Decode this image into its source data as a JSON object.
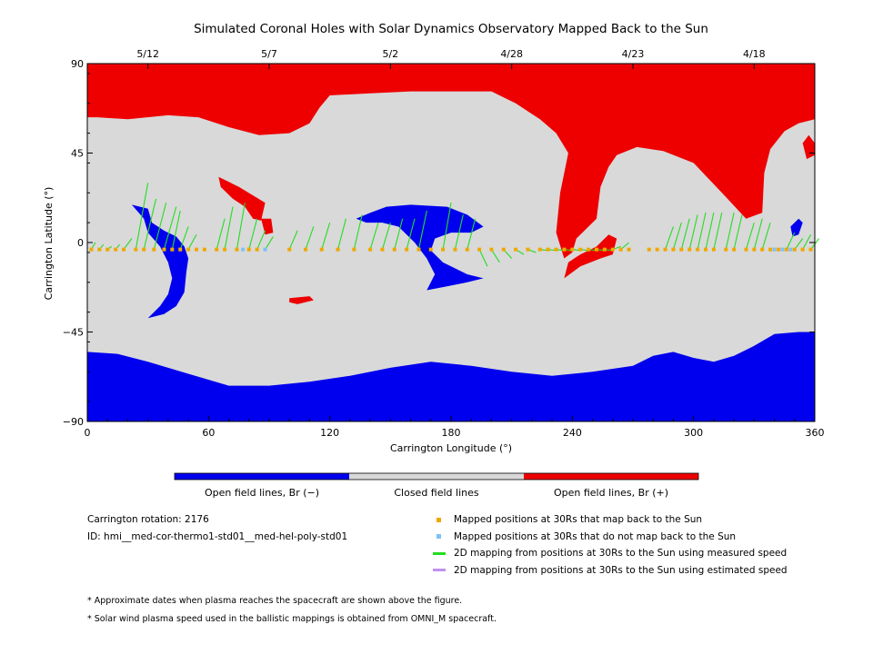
{
  "chart_data": {
    "type": "heatmap",
    "title": "Simulated Coronal Holes with Solar Dynamics Observatory Mapped Back to the Sun",
    "xlabel": "Carrington Longitude (°)",
    "ylabel": "Carrington Latitude (°)",
    "xlim": [
      0,
      360
    ],
    "ylim": [
      -90,
      90
    ],
    "x_ticks": [
      0,
      60,
      120,
      180,
      240,
      300,
      360
    ],
    "y_ticks": [
      90,
      45,
      0,
      -45,
      -90
    ],
    "x_tick_labels": [
      "0",
      "60",
      "120",
      "180",
      "240",
      "300",
      "360"
    ],
    "y_tick_labels": [
      "90",
      "45",
      "0",
      "−45",
      "−90"
    ],
    "top_dates": [
      {
        "lon": 30,
        "label": "5/12"
      },
      {
        "lon": 90,
        "label": "5/7"
      },
      {
        "lon": 150,
        "label": "5/2"
      },
      {
        "lon": 210,
        "label": "4/28"
      },
      {
        "lon": 270,
        "label": "4/23"
      },
      {
        "lon": 330,
        "label": "4/18"
      }
    ],
    "colors": {
      "open_negative": "#0000ee",
      "closed": "#d9d9d9",
      "open_positive": "#ee0000",
      "mapped_ok": "#f0a800",
      "mapped_fail": "#80c0f8",
      "measured_line": "#22dd22",
      "estimated_line": "#c090f0"
    },
    "regions": [
      {
        "name": "north-positive-polar-cap",
        "polarity": "positive",
        "polygon": [
          [
            0,
            90
          ],
          [
            360,
            90
          ],
          [
            360,
            62
          ],
          [
            352,
            60
          ],
          [
            345,
            56
          ],
          [
            338,
            47
          ],
          [
            335,
            35
          ],
          [
            334,
            15
          ],
          [
            326,
            12
          ],
          [
            315,
            24
          ],
          [
            300,
            40
          ],
          [
            285,
            46
          ],
          [
            272,
            48
          ],
          [
            262,
            44
          ],
          [
            258,
            38
          ],
          [
            254,
            28
          ],
          [
            252,
            12
          ],
          [
            246,
            6
          ],
          [
            242,
            2
          ],
          [
            240,
            -5
          ],
          [
            236,
            -8
          ],
          [
            232,
            5
          ],
          [
            234,
            25
          ],
          [
            238,
            45
          ],
          [
            232,
            55
          ],
          [
            224,
            62
          ],
          [
            212,
            70
          ],
          [
            200,
            76
          ],
          [
            180,
            76
          ],
          [
            160,
            76
          ],
          [
            140,
            75
          ],
          [
            120,
            74
          ],
          [
            115,
            68
          ],
          [
            110,
            60
          ],
          [
            100,
            55
          ],
          [
            85,
            54
          ],
          [
            70,
            58
          ],
          [
            55,
            63
          ],
          [
            40,
            64
          ],
          [
            20,
            62
          ],
          [
            5,
            63
          ],
          [
            0,
            63
          ]
        ]
      },
      {
        "name": "north-positive-lobe-east",
        "polarity": "positive",
        "polygon": [
          [
            354,
            50
          ],
          [
            357,
            54
          ],
          [
            360,
            50
          ],
          [
            360,
            44
          ],
          [
            356,
            42
          ]
        ]
      },
      {
        "name": "positive-patch-70",
        "polarity": "positive",
        "polygon": [
          [
            65,
            33
          ],
          [
            75,
            28
          ],
          [
            88,
            20
          ],
          [
            86,
            11
          ],
          [
            82,
            12
          ],
          [
            78,
            18
          ],
          [
            72,
            22
          ],
          [
            66,
            28
          ]
        ]
      },
      {
        "name": "positive-patch-88",
        "polarity": "positive",
        "polygon": [
          [
            86,
            12
          ],
          [
            91,
            12
          ],
          [
            92,
            5
          ],
          [
            88,
            4
          ]
        ]
      },
      {
        "name": "positive-patch-south",
        "polarity": "positive",
        "polygon": [
          [
            100,
            -28
          ],
          [
            110,
            -27
          ],
          [
            112,
            -29
          ],
          [
            104,
            -31
          ],
          [
            100,
            -30
          ]
        ]
      },
      {
        "name": "positive-finger-250",
        "polarity": "positive",
        "polygon": [
          [
            236,
            -18
          ],
          [
            244,
            -12
          ],
          [
            254,
            -8
          ],
          [
            260,
            -6
          ],
          [
            262,
            2
          ],
          [
            258,
            4
          ],
          [
            252,
            -2
          ],
          [
            244,
            -6
          ],
          [
            238,
            -10
          ]
        ]
      },
      {
        "name": "south-negative-polar-cap",
        "polarity": "negative",
        "polygon": [
          [
            0,
            -90
          ],
          [
            360,
            -90
          ],
          [
            360,
            -45
          ],
          [
            352,
            -45
          ],
          [
            340,
            -46
          ],
          [
            330,
            -52
          ],
          [
            320,
            -57
          ],
          [
            310,
            -60
          ],
          [
            300,
            -58
          ],
          [
            290,
            -55
          ],
          [
            280,
            -57
          ],
          [
            270,
            -62
          ],
          [
            250,
            -65
          ],
          [
            230,
            -67
          ],
          [
            210,
            -65
          ],
          [
            190,
            -62
          ],
          [
            170,
            -60
          ],
          [
            150,
            -63
          ],
          [
            130,
            -67
          ],
          [
            110,
            -70
          ],
          [
            90,
            -72
          ],
          [
            70,
            -72
          ],
          [
            50,
            -66
          ],
          [
            30,
            -60
          ],
          [
            15,
            -56
          ],
          [
            0,
            -55
          ]
        ]
      },
      {
        "name": "negative-hole-50",
        "polarity": "negative",
        "polygon": [
          [
            22,
            19
          ],
          [
            30,
            17
          ],
          [
            32,
            10
          ],
          [
            38,
            6
          ],
          [
            44,
            3
          ],
          [
            48,
            -2
          ],
          [
            50,
            -8
          ],
          [
            49,
            -15
          ],
          [
            48,
            -25
          ],
          [
            44,
            -32
          ],
          [
            38,
            -36
          ],
          [
            30,
            -38
          ],
          [
            36,
            -32
          ],
          [
            40,
            -26
          ],
          [
            42,
            -18
          ],
          [
            40,
            -10
          ],
          [
            36,
            -2
          ],
          [
            30,
            5
          ],
          [
            28,
            12
          ]
        ]
      },
      {
        "name": "negative-hole-170",
        "polarity": "negative",
        "polygon": [
          [
            133,
            12
          ],
          [
            140,
            15
          ],
          [
            148,
            18
          ],
          [
            160,
            19
          ],
          [
            178,
            18
          ],
          [
            188,
            14
          ],
          [
            196,
            8
          ],
          [
            190,
            5
          ],
          [
            180,
            5
          ],
          [
            172,
            2
          ],
          [
            170,
            -4
          ],
          [
            176,
            -10
          ],
          [
            188,
            -16
          ],
          [
            196,
            -18
          ],
          [
            188,
            -20
          ],
          [
            178,
            -22
          ],
          [
            168,
            -24
          ],
          [
            172,
            -16
          ],
          [
            168,
            -8
          ],
          [
            162,
            0
          ],
          [
            154,
            8
          ],
          [
            146,
            10
          ],
          [
            138,
            10
          ]
        ]
      },
      {
        "name": "negative-patch-350",
        "polarity": "negative",
        "polygon": [
          [
            348,
            8
          ],
          [
            352,
            12
          ],
          [
            354,
            10
          ],
          [
            352,
            4
          ],
          [
            349,
            3
          ]
        ]
      }
    ],
    "trace_points": {
      "latitude": -3.5,
      "ok_lons": [
        2,
        6,
        10,
        14,
        18,
        24,
        28,
        33,
        38,
        42,
        46,
        50,
        54,
        58,
        64,
        68,
        74,
        80,
        84,
        100,
        108,
        116,
        124,
        132,
        140,
        146,
        152,
        158,
        164,
        170,
        176,
        182,
        188,
        194,
        200,
        206,
        212,
        218,
        224,
        228,
        232,
        236,
        240,
        244,
        248,
        252,
        256,
        260,
        264,
        268,
        278,
        282,
        286,
        290,
        294,
        298,
        302,
        306,
        310,
        316,
        320,
        326,
        330,
        334,
        338,
        342,
        346,
        350,
        354,
        358
      ],
      "fail_lons": [
        77,
        88,
        340,
        344,
        348
      ]
    },
    "mapping_lines": [
      [
        2,
        2,
        0
      ],
      [
        6,
        2,
        -1
      ],
      [
        10,
        2,
        -2
      ],
      [
        14,
        2,
        -1
      ],
      [
        18,
        4,
        2
      ],
      [
        24,
        6,
        30
      ],
      [
        28,
        6,
        22
      ],
      [
        33,
        6,
        20
      ],
      [
        38,
        6,
        18
      ],
      [
        42,
        4,
        16
      ],
      [
        46,
        4,
        8
      ],
      [
        50,
        4,
        4
      ],
      [
        64,
        4,
        12
      ],
      [
        68,
        4,
        18
      ],
      [
        74,
        4,
        20
      ],
      [
        80,
        4,
        12
      ],
      [
        84,
        4,
        6
      ],
      [
        88,
        4,
        3
      ],
      [
        100,
        4,
        6
      ],
      [
        108,
        4,
        8
      ],
      [
        116,
        4,
        10
      ],
      [
        124,
        4,
        12
      ],
      [
        132,
        4,
        14
      ],
      [
        140,
        4,
        10
      ],
      [
        146,
        4,
        10
      ],
      [
        152,
        4,
        12
      ],
      [
        158,
        4,
        12
      ],
      [
        164,
        4,
        16
      ],
      [
        176,
        4,
        20
      ],
      [
        182,
        4,
        14
      ],
      [
        188,
        4,
        12
      ],
      [
        194,
        4,
        -12
      ],
      [
        200,
        4,
        -10
      ],
      [
        206,
        4,
        -8
      ],
      [
        212,
        4,
        -6
      ],
      [
        218,
        4,
        -5
      ],
      [
        224,
        4,
        -4
      ],
      [
        228,
        4,
        -4
      ],
      [
        232,
        4,
        -4
      ],
      [
        236,
        4,
        -4
      ],
      [
        240,
        4,
        -4
      ],
      [
        244,
        4,
        -4
      ],
      [
        248,
        4,
        -4
      ],
      [
        252,
        4,
        -4
      ],
      [
        256,
        4,
        -4
      ],
      [
        260,
        4,
        -2
      ],
      [
        264,
        4,
        0
      ],
      [
        286,
        4,
        8
      ],
      [
        290,
        4,
        10
      ],
      [
        294,
        4,
        12
      ],
      [
        298,
        4,
        14
      ],
      [
        302,
        4,
        15
      ],
      [
        306,
        4,
        15
      ],
      [
        310,
        4,
        15
      ],
      [
        316,
        4,
        15
      ],
      [
        320,
        4,
        14
      ],
      [
        326,
        4,
        10
      ],
      [
        330,
        4,
        12
      ],
      [
        334,
        4,
        10
      ],
      [
        346,
        4,
        5
      ],
      [
        350,
        4,
        2
      ],
      [
        354,
        4,
        4
      ],
      [
        358,
        4,
        2
      ]
    ],
    "colorbar": [
      {
        "label": "Open field lines, Br (−)",
        "color": "#0000ee"
      },
      {
        "label": "Closed field lines",
        "color": "#d9d9d9"
      },
      {
        "label": "Open field lines, Br (+)",
        "color": "#ee0000"
      }
    ]
  },
  "info": {
    "carrington_rotation": "Carrington rotation: 2176",
    "id_text": "ID: hmi__med-cor-thermo1-std01__med-hel-poly-std01"
  },
  "legend": [
    {
      "label": "Mapped positions at 30Rs that map back to the Sun",
      "swatch": "square",
      "color": "#f0a800"
    },
    {
      "label": "Mapped positions at 30Rs that do not map back to the Sun",
      "swatch": "square",
      "color": "#80c0f8"
    },
    {
      "label": "2D mapping from positions at 30Rs to the Sun using measured speed",
      "swatch": "line",
      "color": "#22dd22"
    },
    {
      "label": "2D mapping from positions at 30Rs to the Sun using estimated speed",
      "swatch": "line",
      "color": "#c090f0"
    }
  ],
  "notes": [
    "* Approximate dates when plasma reaches the spacecraft are shown above the figure.",
    "* Solar wind plasma speed used in the ballistic mappings is obtained from OMNI_M spacecraft."
  ]
}
